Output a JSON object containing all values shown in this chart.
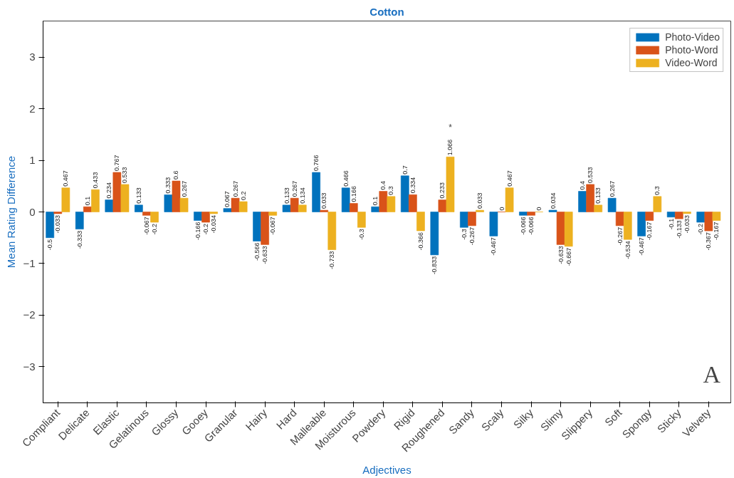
{
  "chart_data": {
    "type": "bar",
    "title": "Cotton",
    "xlabel": "Adjectives",
    "ylabel": "Mean Rating Difference",
    "categories": [
      "Compliant",
      "Delicate",
      "Elastic",
      "Gelatinous",
      "Glossy",
      "Gooey",
      "Granular",
      "Hairy",
      "Hard",
      "Malleable",
      "Moisturous",
      "Powdery",
      "Rigid",
      "Roughened",
      "Sandy",
      "Scaly",
      "Silky",
      "Slimy",
      "Slippery",
      "Soft",
      "Spongy",
      "Sticky",
      "Velvety"
    ],
    "series": [
      {
        "name": "Photo-Video",
        "color": "#0072bd",
        "values": [
          -0.5,
          -0.333,
          0.234,
          0.133,
          0.333,
          -0.166,
          0.067,
          -0.566,
          0.133,
          0.766,
          0.466,
          0.1,
          0.7,
          -0.833,
          -0.3,
          -0.467,
          -0.066,
          0.034,
          0.4,
          0.267,
          -0.467,
          -0.1,
          -0.2
        ]
      },
      {
        "name": "Photo-Word",
        "color": "#d95319",
        "values": [
          -0.033,
          0.1,
          0.767,
          -0.067,
          0.6,
          -0.2,
          0.267,
          -0.633,
          0.267,
          0.033,
          0.166,
          0.4,
          0.334,
          0.233,
          -0.267,
          0,
          -0.066,
          -0.633,
          0.533,
          -0.267,
          -0.167,
          -0.133,
          -0.367
        ]
      },
      {
        "name": "Video-Word",
        "color": "#edb120",
        "values": [
          0.467,
          0.433,
          0.533,
          -0.2,
          0.267,
          -0.034,
          0.2,
          -0.067,
          0.134,
          -0.733,
          -0.3,
          0.3,
          -0.366,
          1.066,
          0.033,
          0.467,
          0,
          -0.667,
          0.133,
          -0.534,
          0.3,
          -0.033,
          -0.167
        ]
      }
    ],
    "ylim": [
      -3.7,
      3.7
    ],
    "yticks": [
      -3,
      -2,
      -1,
      0,
      1,
      2,
      3
    ],
    "grid": false,
    "legend": "top right",
    "data_labels": true,
    "annotations": [
      "*",
      "A"
    ]
  }
}
